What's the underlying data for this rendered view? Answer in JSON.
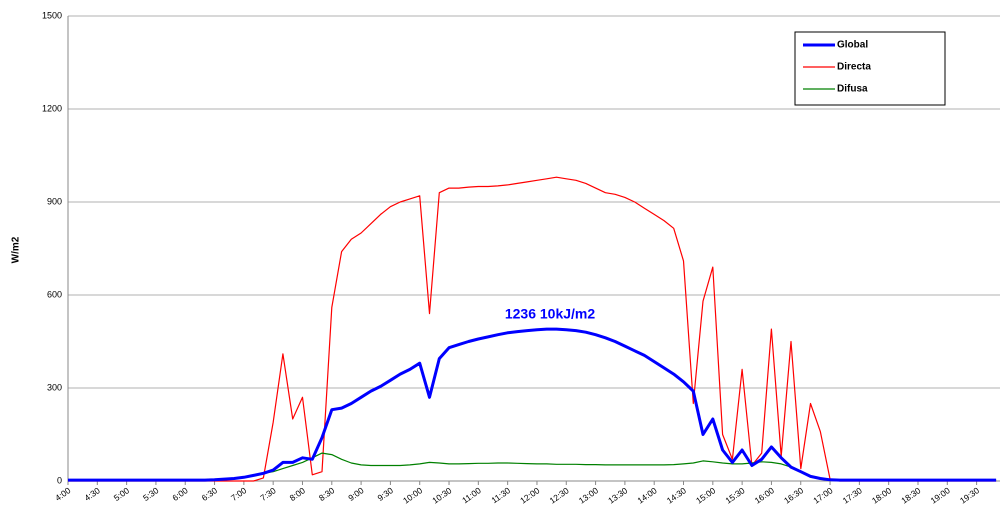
{
  "chart_data": {
    "type": "line",
    "y_label": "W/m2",
    "annotation": "1236  10kJ/m2",
    "ylim": [
      0,
      1500
    ],
    "yticks": [
      0,
      300,
      600,
      900,
      1200,
      1500
    ],
    "grid": true,
    "legend": "upper right",
    "categories": [
      "4:00",
      null,
      null,
      "4:30",
      null,
      null,
      "5:00",
      null,
      null,
      "5:30",
      null,
      null,
      "6:00",
      null,
      null,
      "6:30",
      null,
      null,
      "7:00",
      null,
      null,
      "7:30",
      null,
      null,
      "8:00",
      null,
      null,
      "8:30",
      null,
      null,
      "9:00",
      null,
      null,
      "9:30",
      null,
      null,
      "10:00",
      null,
      null,
      "10:30",
      null,
      null,
      "11:00",
      null,
      null,
      "11:30",
      null,
      null,
      "12:00",
      null,
      null,
      "12:30",
      null,
      null,
      "13:00",
      null,
      null,
      "13:30",
      null,
      null,
      "14:00",
      null,
      null,
      "14:30",
      null,
      null,
      "15:00",
      null,
      null,
      "15:30",
      null,
      null,
      "16:00",
      null,
      null,
      "16:30",
      null,
      null,
      "17:00",
      null,
      null,
      "17:30",
      null,
      null,
      "18:00",
      null,
      null,
      "18:30",
      null,
      null,
      "19:00",
      null,
      null,
      "19:30",
      null,
      null
    ],
    "series": [
      {
        "name": "Global",
        "color": "#0000ff",
        "values": [
          3,
          3,
          3,
          3,
          3,
          3,
          3,
          3,
          3,
          3,
          3,
          3,
          3,
          3,
          3,
          4,
          6,
          8,
          12,
          18,
          25,
          35,
          60,
          60,
          75,
          70,
          140,
          230,
          235,
          250,
          270,
          290,
          305,
          325,
          345,
          360,
          380,
          270,
          395,
          430,
          440,
          450,
          458,
          465,
          472,
          478,
          482,
          485,
          488,
          490,
          490,
          488,
          485,
          480,
          472,
          462,
          450,
          435,
          420,
          405,
          385,
          365,
          345,
          320,
          290,
          150,
          200,
          100,
          60,
          100,
          50,
          70,
          110,
          75,
          45,
          30,
          15,
          8,
          4,
          3,
          3,
          3,
          3,
          3,
          3,
          3,
          3,
          3,
          3,
          3,
          3,
          3,
          3,
          3,
          3,
          3
        ]
      },
      {
        "name": "Directa",
        "color": "#ff0000",
        "values": [
          0,
          0,
          0,
          0,
          0,
          0,
          0,
          0,
          0,
          0,
          0,
          0,
          0,
          0,
          0,
          0,
          0,
          0,
          0,
          0,
          10,
          190,
          410,
          200,
          270,
          20,
          30,
          560,
          740,
          780,
          800,
          830,
          860,
          885,
          900,
          910,
          920,
          540,
          930,
          945,
          945,
          948,
          950,
          950,
          952,
          955,
          960,
          965,
          970,
          975,
          980,
          975,
          970,
          960,
          945,
          930,
          925,
          915,
          900,
          880,
          860,
          840,
          815,
          710,
          250,
          580,
          690,
          150,
          70,
          360,
          50,
          90,
          490,
          80,
          450,
          40,
          250,
          160,
          5,
          0,
          0,
          0,
          0,
          0,
          0,
          0,
          0,
          0,
          0,
          0,
          0,
          0,
          0,
          0,
          0,
          0
        ]
      },
      {
        "name": "Difusa",
        "color": "#008000",
        "values": [
          3,
          3,
          3,
          3,
          3,
          3,
          3,
          3,
          3,
          3,
          3,
          3,
          3,
          3,
          3,
          4,
          6,
          8,
          12,
          18,
          25,
          30,
          40,
          50,
          60,
          75,
          90,
          85,
          70,
          58,
          52,
          50,
          50,
          50,
          50,
          52,
          55,
          60,
          58,
          55,
          55,
          56,
          57,
          57,
          58,
          58,
          57,
          56,
          55,
          55,
          54,
          54,
          54,
          53,
          53,
          52,
          52,
          52,
          52,
          52,
          52,
          52,
          53,
          55,
          58,
          65,
          62,
          58,
          55,
          55,
          58,
          62,
          60,
          55,
          45,
          30,
          15,
          8,
          4,
          3,
          3,
          3,
          3,
          3,
          3,
          3,
          3,
          3,
          3,
          3,
          3,
          3,
          3,
          3,
          3,
          3
        ]
      }
    ]
  }
}
